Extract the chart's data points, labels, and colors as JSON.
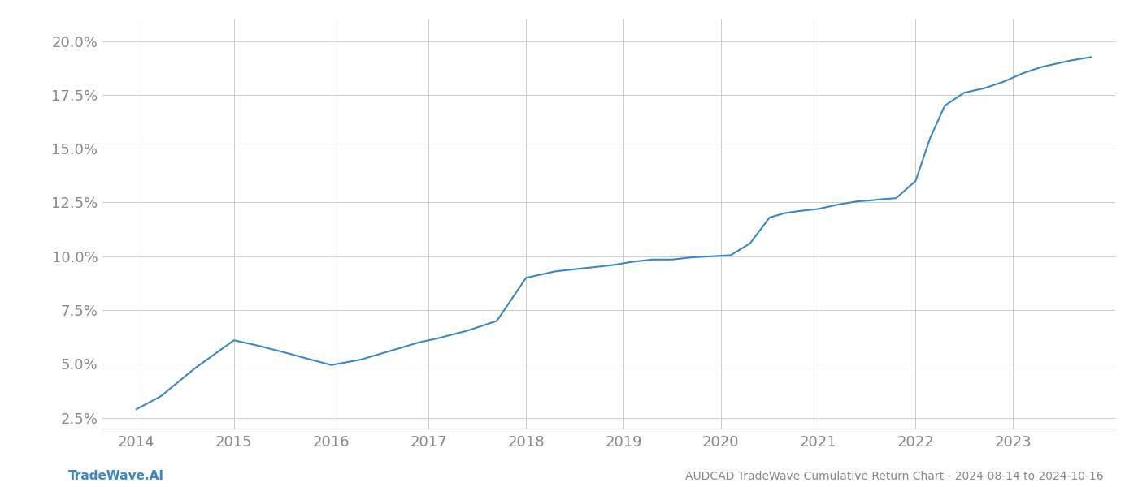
{
  "title": "AUDCAD TradeWave Cumulative Return Chart - 2024-08-14 to 2024-10-16",
  "line_color": "#3a87c8",
  "line_width": 1.5,
  "background_color": "#ffffff",
  "grid_color": "#cccccc",
  "label_color": "#888888",
  "footer_left": "TradeWave.AI",
  "footer_left_color": "#3a87c8",
  "footer_right": "AUDCAD TradeWave Cumulative Return Chart - 2024-08-14 to 2024-10-16",
  "footer_right_color": "#888888",
  "x_values": [
    2014.0,
    2014.25,
    2014.6,
    2015.0,
    2015.25,
    2015.55,
    2015.75,
    2016.0,
    2016.3,
    2016.6,
    2016.9,
    2017.1,
    2017.4,
    2017.7,
    2018.0,
    2018.15,
    2018.3,
    2018.5,
    2018.7,
    2018.9,
    2019.1,
    2019.3,
    2019.5,
    2019.7,
    2019.9,
    2020.1,
    2020.3,
    2020.5,
    2020.65,
    2020.8,
    2021.0,
    2021.2,
    2021.4,
    2021.55,
    2021.65,
    2021.8,
    2022.0,
    2022.15,
    2022.3,
    2022.5,
    2022.7,
    2022.9,
    2023.1,
    2023.3,
    2023.6,
    2023.8
  ],
  "y_values": [
    2.9,
    3.5,
    4.8,
    6.1,
    5.85,
    5.5,
    5.25,
    4.95,
    5.2,
    5.6,
    6.0,
    6.2,
    6.55,
    7.0,
    9.0,
    9.15,
    9.3,
    9.4,
    9.5,
    9.6,
    9.75,
    9.85,
    9.85,
    9.95,
    10.0,
    10.05,
    10.6,
    11.8,
    12.0,
    12.1,
    12.2,
    12.4,
    12.55,
    12.6,
    12.65,
    12.7,
    13.5,
    15.5,
    17.0,
    17.6,
    17.8,
    18.1,
    18.5,
    18.8,
    19.1,
    19.25
  ],
  "xlim": [
    2013.65,
    2024.05
  ],
  "ylim": [
    2.0,
    21.0
  ],
  "yticks": [
    2.5,
    5.0,
    7.5,
    10.0,
    12.5,
    15.0,
    17.5,
    20.0
  ],
  "xticks": [
    2014,
    2015,
    2016,
    2017,
    2018,
    2019,
    2020,
    2021,
    2022,
    2023
  ],
  "tick_fontsize": 13,
  "footer_fontsize": 11
}
